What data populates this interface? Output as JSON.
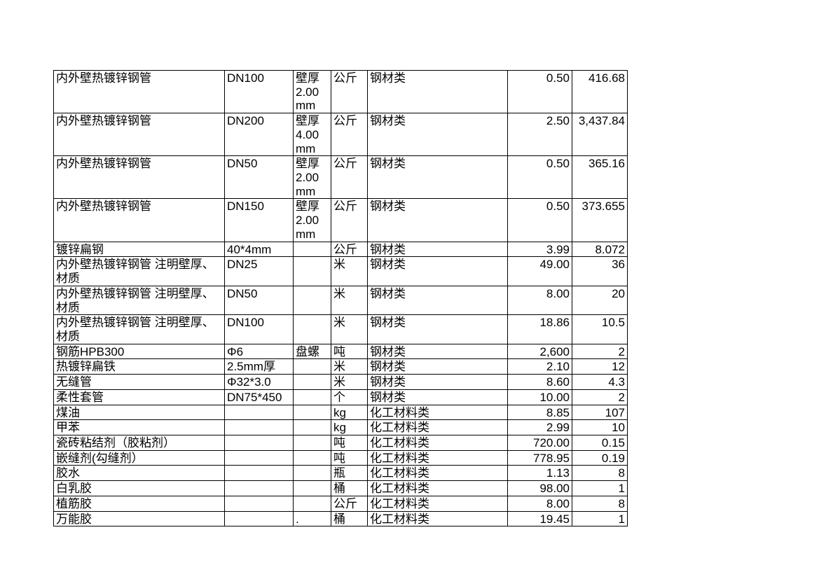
{
  "table": {
    "description": "materials-price-table",
    "rows": [
      {
        "cells": [
          "内外壁热镀锌钢管",
          "DN100",
          "壁厚2.00mm",
          "公斤",
          "钢材类",
          "0.50",
          "416.68"
        ]
      },
      {
        "cells": [
          "内外壁热镀锌钢管",
          "DN200",
          "壁厚4.00mm",
          "公斤",
          "钢材类",
          "2.50",
          "3,437.84"
        ]
      },
      {
        "cells": [
          "内外壁热镀锌钢管",
          "DN50",
          "壁厚2.00mm",
          "公斤",
          "钢材类",
          "0.50",
          "365.16"
        ]
      },
      {
        "cells": [
          "内外壁热镀锌钢管",
          "DN150",
          "壁厚2.00mm",
          "公斤",
          "钢材类",
          "0.50",
          "373.655"
        ]
      },
      {
        "cells": [
          "镀锌扁钢",
          "40*4mm",
          "",
          "公斤",
          "钢材类",
          "3.99",
          "8.072"
        ]
      },
      {
        "cells": [
          "内外壁热镀锌钢管 注明壁厚、材质",
          "DN25",
          "",
          "米",
          "钢材类",
          "49.00",
          "36"
        ]
      },
      {
        "cells": [
          "内外壁热镀锌钢管 注明壁厚、材质",
          "DN50",
          "",
          "米",
          "钢材类",
          "8.00",
          "20"
        ]
      },
      {
        "cells": [
          "内外壁热镀锌钢管 注明壁厚、材质",
          "DN100",
          "",
          "米",
          "钢材类",
          "18.86",
          "10.5"
        ]
      },
      {
        "cells": [
          "钢筋HPB300",
          "Φ6",
          "盘螺",
          "吨",
          "钢材类",
          "2,600",
          "2"
        ]
      },
      {
        "cells": [
          "热镀锌扁铁",
          "2.5mm厚",
          "",
          "米",
          "钢材类",
          "2.10",
          "12"
        ]
      },
      {
        "cells": [
          "无缝管",
          "Φ32*3.0",
          "",
          "米",
          "钢材类",
          "8.60",
          "4.3"
        ]
      },
      {
        "cells": [
          "柔性套管",
          "DN75*450",
          "",
          "个",
          "钢材类",
          "10.00",
          "2"
        ]
      },
      {
        "cells": [
          "煤油",
          "",
          "",
          "kg",
          "化工材料类",
          "8.85",
          "107"
        ]
      },
      {
        "cells": [
          "甲苯",
          "",
          "",
          "kg",
          "化工材料类",
          "2.99",
          "10"
        ]
      },
      {
        "cells": [
          "瓷砖粘结剂（胶粘剂）",
          "",
          "",
          "吨",
          "化工材料类",
          "720.00",
          "0.15"
        ]
      },
      {
        "cells": [
          "嵌缝剂(勾缝剂）",
          "",
          "",
          "吨",
          "化工材料类",
          "778.95",
          "0.19"
        ]
      },
      {
        "cells": [
          "胶水",
          "",
          "",
          "瓶",
          "化工材料类",
          "1.13",
          "8"
        ]
      },
      {
        "cells": [
          "白乳胶",
          "",
          "",
          "桶",
          "化工材料类",
          "98.00",
          "1"
        ]
      },
      {
        "cells": [
          "植筋胶",
          "",
          "",
          "公斤",
          "化工材料类",
          "8.00",
          "8"
        ]
      },
      {
        "cells": [
          "万能胶",
          "",
          ".",
          "桶",
          "化工材料类",
          "19.45",
          "1"
        ]
      }
    ],
    "colors": {
      "text": "#000000",
      "border": "#000000",
      "background": "#ffffff"
    }
  }
}
